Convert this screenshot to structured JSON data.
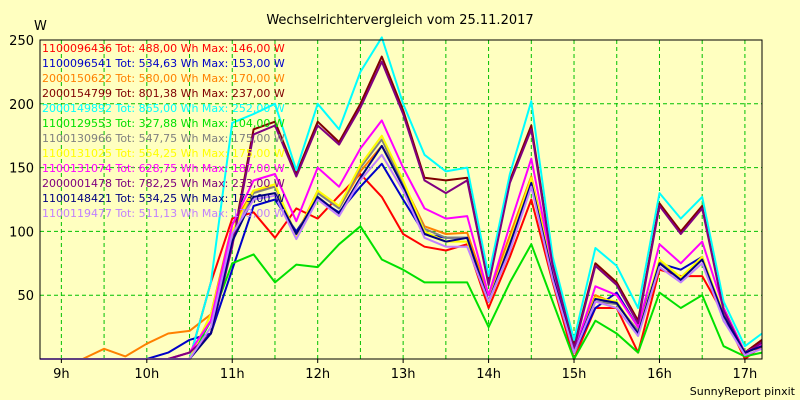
{
  "chart_data": {
    "type": "line",
    "title": "Wechselrichtervergleich vom 25.11.2017",
    "ylabel": "W",
    "credit": "SunnyReport pinxit",
    "xlim": [
      8.75,
      17.2
    ],
    "ylim": [
      0,
      250
    ],
    "x_ticks": [
      {
        "x": 9,
        "label": "9h"
      },
      {
        "x": 10,
        "label": "10h"
      },
      {
        "x": 11,
        "label": "11h"
      },
      {
        "x": 12,
        "label": "12h"
      },
      {
        "x": 13,
        "label": "13h"
      },
      {
        "x": 14,
        "label": "14h"
      },
      {
        "x": 15,
        "label": "15h"
      },
      {
        "x": 16,
        "label": "16h"
      },
      {
        "x": 17,
        "label": "17h"
      }
    ],
    "y_ticks": [
      50,
      100,
      150,
      200,
      250
    ],
    "grid": true,
    "legend_position": "top-left",
    "x": [
      8.75,
      9.0,
      9.25,
      9.5,
      9.75,
      10.0,
      10.25,
      10.5,
      10.75,
      11.0,
      11.25,
      11.5,
      11.75,
      12.0,
      12.25,
      12.5,
      12.75,
      13.0,
      13.25,
      13.5,
      13.75,
      14.0,
      14.25,
      14.5,
      14.75,
      15.0,
      15.25,
      15.5,
      15.75,
      16.0,
      16.25,
      16.5,
      16.75,
      17.0,
      17.2
    ],
    "series": [
      {
        "name": "1100096436 Tot: 488,00 Wh Max: 146,00 W",
        "color": "#ff0000",
        "values": [
          0,
          0,
          0,
          0,
          0,
          0,
          0,
          0,
          60,
          110,
          115,
          95,
          118,
          110,
          128,
          145,
          127,
          98,
          88,
          85,
          90,
          40,
          80,
          125,
          60,
          0,
          40,
          40,
          5,
          70,
          65,
          65,
          35,
          0,
          10
        ]
      },
      {
        "name": "1100096541 Tot: 534,63 Wh Max: 153,00 W",
        "color": "#0000c8",
        "values": [
          0,
          0,
          0,
          0,
          0,
          0,
          5,
          15,
          20,
          70,
          120,
          125,
          100,
          125,
          115,
          135,
          153,
          125,
          98,
          95,
          95,
          45,
          85,
          140,
          65,
          5,
          40,
          52,
          25,
          75,
          70,
          80,
          30,
          5,
          15
        ]
      },
      {
        "name": "2000150622 Tot: 580,00 Wh Max: 170,00 W",
        "color": "#ff8000",
        "values": [
          0,
          0,
          0,
          8,
          2,
          12,
          20,
          22,
          35,
          105,
          132,
          135,
          97,
          132,
          118,
          147,
          167,
          138,
          104,
          98,
          99,
          50,
          97,
          143,
          70,
          8,
          50,
          43,
          22,
          76,
          62,
          79,
          35,
          5,
          10
        ]
      },
      {
        "name": "2000154799 Tot: 801,38 Wh Max: 237,00 W",
        "color": "#800000",
        "values": [
          0,
          0,
          0,
          0,
          0,
          0,
          0,
          5,
          20,
          90,
          180,
          186,
          145,
          186,
          170,
          200,
          237,
          195,
          142,
          140,
          142,
          60,
          140,
          183,
          75,
          10,
          75,
          60,
          30,
          122,
          100,
          120,
          40,
          5,
          15
        ]
      },
      {
        "name": "2000149892 Tot: 865,00 Wh Max: 252,00 W",
        "color": "#00ffff",
        "values": [
          0,
          0,
          0,
          0,
          0,
          0,
          0,
          0,
          60,
          185,
          192,
          200,
          148,
          200,
          180,
          225,
          252,
          200,
          160,
          147,
          150,
          65,
          145,
          202,
          80,
          15,
          87,
          73,
          40,
          130,
          110,
          127,
          45,
          10,
          20
        ]
      },
      {
        "name": "1100129553 Tot: 327,88 Wh Max: 104,00 W",
        "color": "#00e000",
        "values": [
          0,
          0,
          0,
          0,
          0,
          0,
          0,
          0,
          30,
          75,
          82,
          60,
          74,
          72,
          90,
          104,
          78,
          70,
          60,
          60,
          60,
          25,
          60,
          90,
          45,
          0,
          30,
          20,
          5,
          52,
          40,
          50,
          10,
          2,
          5
        ]
      },
      {
        "name": "1100130966 Tot: 547,75 Wh Max: 175,00 W",
        "color": "#808080",
        "values": [
          0,
          0,
          0,
          0,
          0,
          0,
          0,
          0,
          35,
          95,
          130,
          135,
          97,
          130,
          118,
          150,
          172,
          137,
          102,
          95,
          95,
          45,
          90,
          140,
          65,
          5,
          45,
          43,
          22,
          76,
          62,
          79,
          35,
          5,
          10
        ]
      },
      {
        "name": "1100131025 Tot: 554,25 Wh Max: 175,00 W",
        "color": "#ffff00",
        "values": [
          0,
          0,
          0,
          0,
          0,
          0,
          0,
          0,
          35,
          100,
          132,
          137,
          96,
          132,
          120,
          152,
          175,
          140,
          100,
          92,
          92,
          45,
          92,
          142,
          68,
          5,
          48,
          45,
          20,
          78,
          64,
          80,
          35,
          5,
          10
        ]
      },
      {
        "name": "1100131074 Tot: 628,75 Wh Max: 187,00 W",
        "color": "#ff00ff",
        "values": [
          0,
          0,
          0,
          0,
          0,
          0,
          0,
          5,
          30,
          105,
          140,
          145,
          108,
          150,
          135,
          165,
          187,
          150,
          118,
          110,
          112,
          50,
          105,
          157,
          72,
          5,
          57,
          50,
          25,
          90,
          75,
          92,
          40,
          5,
          12
        ]
      },
      {
        "name": "2000001478 Tot: 782,25 Wh Max: 233,00 W",
        "color": "#800080",
        "values": [
          0,
          0,
          0,
          0,
          0,
          0,
          0,
          5,
          20,
          88,
          176,
          183,
          143,
          183,
          168,
          197,
          233,
          192,
          140,
          130,
          140,
          58,
          138,
          180,
          73,
          8,
          73,
          58,
          28,
          120,
          98,
          118,
          38,
          4,
          13
        ]
      },
      {
        "name": "1100148421 Tot: 534,25 Wh Max: 173,00 W",
        "color": "#000080",
        "values": [
          0,
          0,
          0,
          0,
          0,
          0,
          0,
          0,
          20,
          92,
          127,
          130,
          98,
          127,
          114,
          142,
          167,
          135,
          98,
          92,
          95,
          45,
          90,
          138,
          65,
          5,
          47,
          44,
          20,
          75,
          62,
          78,
          34,
          5,
          10
        ]
      },
      {
        "name": "1100119477 Tot: 511,13 Wh Max: 173,00 W",
        "color": "#c080ff",
        "values": [
          0,
          0,
          0,
          0,
          0,
          0,
          0,
          0,
          25,
          98,
          125,
          128,
          94,
          125,
          112,
          140,
          160,
          132,
          95,
          88,
          88,
          45,
          85,
          135,
          62,
          5,
          45,
          40,
          18,
          72,
          60,
          75,
          30,
          3,
          8
        ]
      }
    ]
  }
}
